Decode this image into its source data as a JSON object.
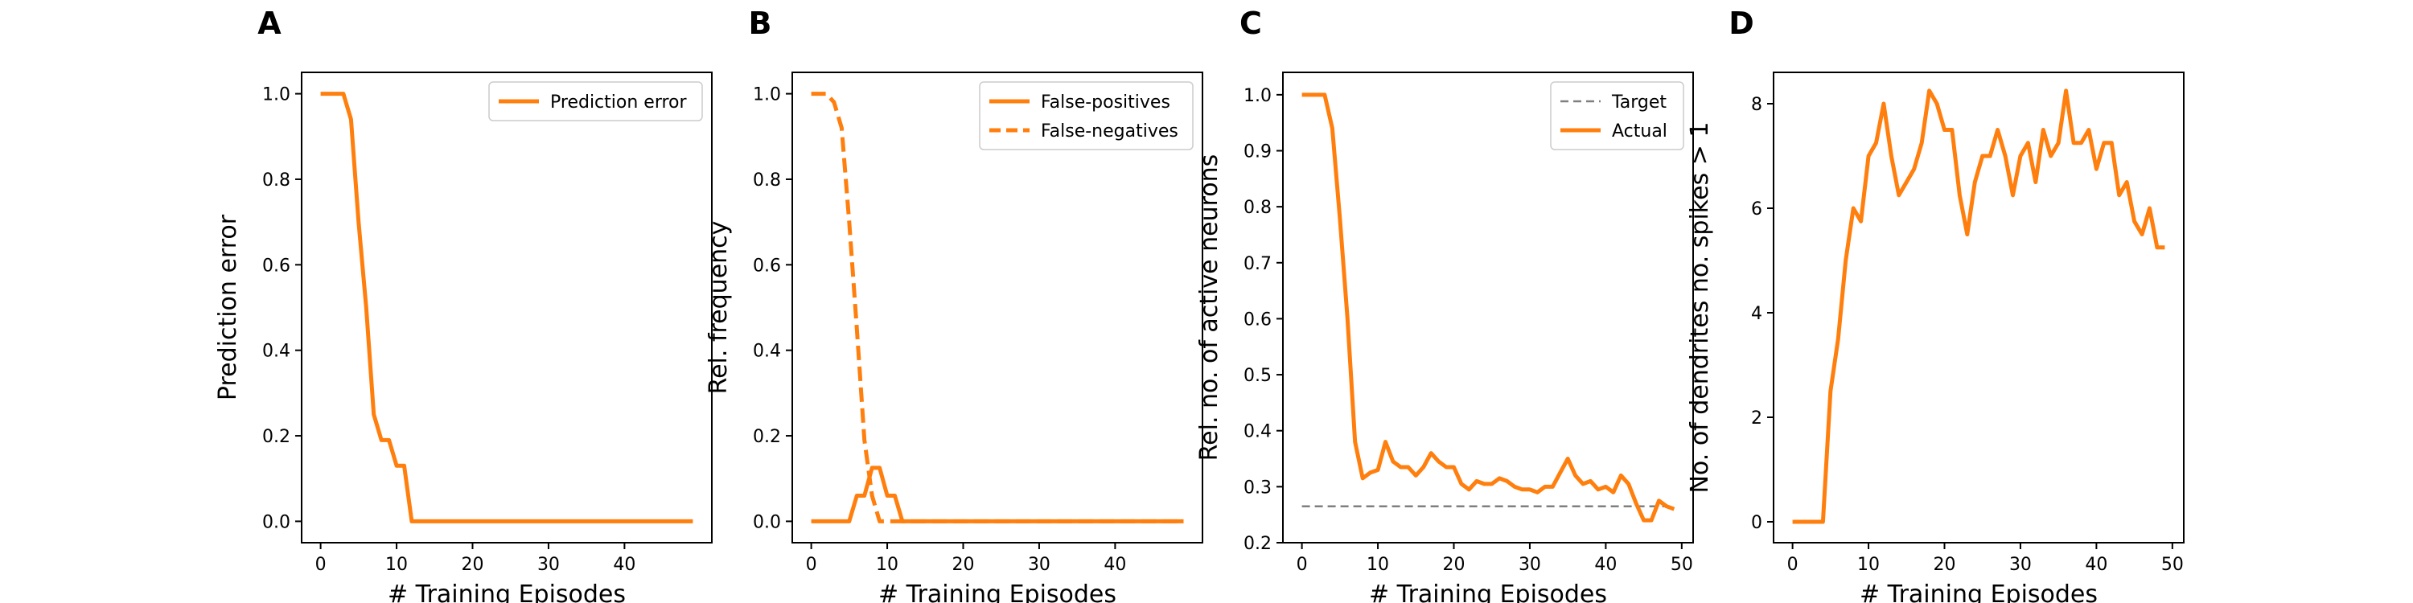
{
  "colors": {
    "series": "#ff7f0e",
    "target": "#7f7f7f"
  },
  "chart_data": [
    {
      "letter": "A",
      "type": "line",
      "xlabel": "# Training Episodes",
      "ylabel": "Prediction error",
      "xlim": [
        -2.5,
        51.5
      ],
      "ylim": [
        -0.05,
        1.05
      ],
      "xticks": [
        0,
        10,
        20,
        30,
        40
      ],
      "xtick_labels": [
        "0",
        "10",
        "20",
        "30",
        "40"
      ],
      "yticks": [
        0.0,
        0.2,
        0.4,
        0.6,
        0.8,
        1.0
      ],
      "ytick_labels": [
        "0.0",
        "0.2",
        "0.4",
        "0.6",
        "0.8",
        "1.0"
      ],
      "legend_position": "top-right",
      "series": [
        {
          "name": "Prediction error",
          "style": "solid",
          "x": [
            0,
            1,
            2,
            3,
            4,
            5,
            6,
            7,
            8,
            9,
            10,
            11,
            12,
            13,
            14,
            15,
            16,
            17,
            18,
            19,
            20,
            21,
            22,
            23,
            24,
            25,
            26,
            27,
            28,
            29,
            30,
            31,
            32,
            33,
            34,
            35,
            36,
            37,
            38,
            39,
            40,
            41,
            42,
            43,
            44,
            45,
            46,
            47,
            48,
            49
          ],
          "y": [
            1,
            1,
            1,
            1,
            0.94,
            0.7,
            0.5,
            0.25,
            0.19,
            0.19,
            0.13,
            0.13,
            0,
            0,
            0,
            0,
            0,
            0,
            0,
            0,
            0,
            0,
            0,
            0,
            0,
            0,
            0,
            0,
            0,
            0,
            0,
            0,
            0,
            0,
            0,
            0,
            0,
            0,
            0,
            0,
            0,
            0,
            0,
            0,
            0,
            0,
            0,
            0,
            0,
            0
          ]
        }
      ]
    },
    {
      "letter": "B",
      "type": "line",
      "xlabel": "# Training Episodes",
      "ylabel": "Rel. frequency",
      "xlim": [
        -2.5,
        51.5
      ],
      "ylim": [
        -0.05,
        1.05
      ],
      "xticks": [
        0,
        10,
        20,
        30,
        40
      ],
      "xtick_labels": [
        "0",
        "10",
        "20",
        "30",
        "40"
      ],
      "yticks": [
        0.0,
        0.2,
        0.4,
        0.6,
        0.8,
        1.0
      ],
      "ytick_labels": [
        "0.0",
        "0.2",
        "0.4",
        "0.6",
        "0.8",
        "1.0"
      ],
      "legend_position": "top-right",
      "series": [
        {
          "name": "False-positives",
          "style": "solid",
          "x": [
            0,
            1,
            2,
            3,
            4,
            5,
            6,
            7,
            8,
            9,
            10,
            11,
            12,
            13,
            14,
            15,
            16,
            17,
            18,
            19,
            20,
            21,
            22,
            23,
            24,
            25,
            26,
            27,
            28,
            29,
            30,
            31,
            32,
            33,
            34,
            35,
            36,
            37,
            38,
            39,
            40,
            41,
            42,
            43,
            44,
            45,
            46,
            47,
            48,
            49
          ],
          "y": [
            0,
            0,
            0,
            0,
            0,
            0,
            0.06,
            0.06,
            0.125,
            0.125,
            0.06,
            0.06,
            0,
            0,
            0,
            0,
            0,
            0,
            0,
            0,
            0,
            0,
            0,
            0,
            0,
            0,
            0,
            0,
            0,
            0,
            0,
            0,
            0,
            0,
            0,
            0,
            0,
            0,
            0,
            0,
            0,
            0,
            0,
            0,
            0,
            0,
            0,
            0,
            0,
            0
          ]
        },
        {
          "name": "False-negatives",
          "style": "dashed",
          "x": [
            0,
            1,
            2,
            3,
            4,
            5,
            6,
            7,
            8,
            9,
            10,
            11,
            12,
            13,
            14,
            15,
            16,
            17,
            18,
            19,
            20,
            21,
            22,
            23,
            24,
            25,
            26,
            27,
            28,
            29,
            30,
            31,
            32,
            33,
            34,
            35,
            36,
            37,
            38,
            39,
            40,
            41,
            42,
            43,
            44,
            45,
            46,
            47,
            48,
            49
          ],
          "y": [
            1,
            1,
            1,
            0.98,
            0.92,
            0.7,
            0.45,
            0.19,
            0.06,
            0,
            0,
            0,
            0,
            0,
            0,
            0,
            0,
            0,
            0,
            0,
            0,
            0,
            0,
            0,
            0,
            0,
            0,
            0,
            0,
            0,
            0,
            0,
            0,
            0,
            0,
            0,
            0,
            0,
            0,
            0,
            0,
            0,
            0,
            0,
            0,
            0,
            0,
            0,
            0,
            0
          ]
        }
      ]
    },
    {
      "letter": "C",
      "type": "line",
      "xlabel": "# Training Episodes",
      "ylabel": "Rel. no. of active neurons",
      "xlim": [
        -2.5,
        51.5
      ],
      "ylim": [
        0.2,
        1.04
      ],
      "xticks": [
        0,
        10,
        20,
        30,
        40,
        50
      ],
      "xtick_labels": [
        "0",
        "10",
        "20",
        "30",
        "40",
        "50"
      ],
      "yticks": [
        0.2,
        0.3,
        0.4,
        0.5,
        0.6,
        0.7,
        0.8,
        0.9,
        1.0
      ],
      "ytick_labels": [
        "0.2",
        "0.3",
        "0.4",
        "0.5",
        "0.6",
        "0.7",
        "0.8",
        "0.9",
        "1.0"
      ],
      "legend_position": "top-right",
      "series": [
        {
          "name": "Target",
          "style": "dashed",
          "color_key": "target",
          "x": [
            0,
            49
          ],
          "y": [
            0.265,
            0.265
          ]
        },
        {
          "name": "Actual",
          "style": "solid",
          "x": [
            0,
            1,
            2,
            3,
            4,
            5,
            6,
            7,
            8,
            9,
            10,
            11,
            12,
            13,
            14,
            15,
            16,
            17,
            18,
            19,
            20,
            21,
            22,
            23,
            24,
            25,
            26,
            27,
            28,
            29,
            30,
            31,
            32,
            33,
            34,
            35,
            36,
            37,
            38,
            39,
            40,
            41,
            42,
            43,
            44,
            45,
            46,
            47,
            48,
            49
          ],
          "y": [
            1,
            1,
            1,
            1,
            0.94,
            0.78,
            0.6,
            0.38,
            0.315,
            0.325,
            0.33,
            0.38,
            0.345,
            0.335,
            0.335,
            0.32,
            0.335,
            0.36,
            0.345,
            0.335,
            0.335,
            0.305,
            0.295,
            0.31,
            0.305,
            0.305,
            0.315,
            0.31,
            0.3,
            0.295,
            0.295,
            0.29,
            0.3,
            0.3,
            0.325,
            0.35,
            0.32,
            0.305,
            0.31,
            0.295,
            0.3,
            0.29,
            0.32,
            0.305,
            0.27,
            0.24,
            0.24,
            0.275,
            0.265,
            0.26
          ]
        }
      ]
    },
    {
      "letter": "D",
      "type": "line",
      "xlabel": "# Training Episodes",
      "ylabel": "No. of dendrites no. spikes > 1",
      "xlim": [
        -2.5,
        51.5
      ],
      "ylim": [
        -0.4,
        8.6
      ],
      "xticks": [
        0,
        10,
        20,
        30,
        40,
        50
      ],
      "xtick_labels": [
        "0",
        "10",
        "20",
        "30",
        "40",
        "50"
      ],
      "yticks": [
        0,
        2,
        4,
        6,
        8
      ],
      "ytick_labels": [
        "0",
        "2",
        "4",
        "6",
        "8"
      ],
      "legend_position": "none",
      "series": [
        {
          "style": "solid",
          "x": [
            0,
            1,
            2,
            3,
            4,
            5,
            6,
            7,
            8,
            9,
            10,
            11,
            12,
            13,
            14,
            15,
            16,
            17,
            18,
            19,
            20,
            21,
            22,
            23,
            24,
            25,
            26,
            27,
            28,
            29,
            30,
            31,
            32,
            33,
            34,
            35,
            36,
            37,
            38,
            39,
            40,
            41,
            42,
            43,
            44,
            45,
            46,
            47,
            48,
            49
          ],
          "y": [
            0,
            0,
            0,
            0,
            0,
            2.5,
            3.5,
            5,
            6,
            5.75,
            7,
            7.25,
            8,
            7,
            6.25,
            6.5,
            6.75,
            7.25,
            8.25,
            8,
            7.5,
            7.5,
            6.25,
            5.5,
            6.5,
            7,
            7,
            7.5,
            7,
            6.25,
            7,
            7.25,
            6.5,
            7.5,
            7,
            7.25,
            8.25,
            7.25,
            7.25,
            7.5,
            6.75,
            7.25,
            7.25,
            6.25,
            6.5,
            5.75,
            5.5,
            6,
            5.25,
            5.25
          ]
        }
      ]
    }
  ]
}
